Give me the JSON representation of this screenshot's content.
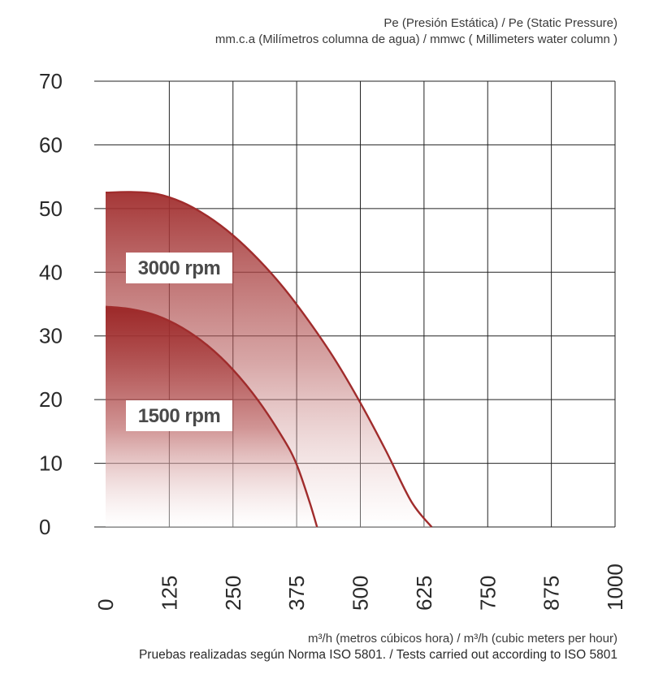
{
  "chart_data": {
    "type": "area",
    "ylabel_lines": [
      "Pe (Presión Estática) /  Pe (Static Pressure)",
      "mm.c.a (Milímetros columna de agua) / mmwc ( Millimeters water column )"
    ],
    "xlabel": "m³/h (metros cúbicos hora) / m³/h (cubic meters per hour)",
    "footnote": "Pruebas realizadas según Norma ISO 5801. / Tests carried out according to ISO 5801",
    "xlim": [
      0,
      1000
    ],
    "ylim": [
      0,
      70
    ],
    "x_ticks": [
      "0",
      "125",
      "250",
      "375",
      "500",
      "625",
      "750",
      "875",
      "1000"
    ],
    "y_ticks": [
      "0",
      "10",
      "20",
      "30",
      "40",
      "50",
      "60",
      "70"
    ],
    "x_tick_values": [
      0,
      125,
      250,
      375,
      500,
      625,
      750,
      875,
      1000
    ],
    "y_tick_values": [
      0,
      10,
      20,
      30,
      40,
      50,
      60,
      70
    ],
    "grid": true,
    "series": [
      {
        "name": "3000 rpm",
        "color": "#a02c2c",
        "x": [
          0,
          50,
          100,
          150,
          200,
          250,
          300,
          350,
          400,
          450,
          500,
          550,
          600,
          640
        ],
        "y": [
          52.5,
          52.6,
          52.3,
          51,
          48.8,
          45.8,
          42,
          37.5,
          32.2,
          26.3,
          19.5,
          12,
          4,
          0
        ]
      },
      {
        "name": "1500 rpm",
        "color": "#a02c2c",
        "x": [
          0,
          50,
          100,
          150,
          200,
          250,
          300,
          350,
          375,
          400,
          415
        ],
        "y": [
          34.6,
          34.2,
          33.2,
          31.3,
          28.5,
          24.7,
          19.8,
          13.7,
          9.8,
          4,
          0
        ]
      }
    ]
  }
}
